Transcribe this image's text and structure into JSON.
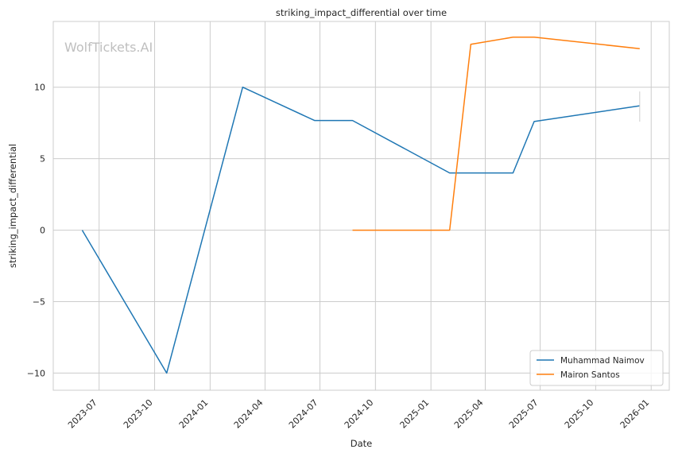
{
  "chart_data": {
    "type": "line",
    "title": "striking_impact_differential over time",
    "xlabel": "Date",
    "ylabel": "striking_impact_differential",
    "watermark": "WolfTickets.AI",
    "x_ticks": [
      "2023-07",
      "2023-10",
      "2024-01",
      "2024-04",
      "2024-07",
      "2024-10",
      "2025-01",
      "2025-04",
      "2025-07",
      "2025-10",
      "2026-01"
    ],
    "y_ticks": [
      -10,
      -5,
      0,
      5,
      10
    ],
    "xlim": [
      "2023-04-16",
      "2026-01-31"
    ],
    "ylim": [
      -11.2,
      14.6
    ],
    "grid": true,
    "legend_position": "lower-right",
    "series": [
      {
        "name": "Muhammad Naimov",
        "color": "#1f77b4",
        "points": [
          {
            "x": "2023-06-03",
            "y": 0
          },
          {
            "x": "2023-10-21",
            "y": -10
          },
          {
            "x": "2024-02-24",
            "y": 10
          },
          {
            "x": "2024-06-22",
            "y": 7.67
          },
          {
            "x": "2024-08-24",
            "y": 7.67
          },
          {
            "x": "2025-02-01",
            "y": 4
          },
          {
            "x": "2025-05-17",
            "y": 4
          },
          {
            "x": "2025-06-21",
            "y": 7.6
          },
          {
            "x": "2025-12-13",
            "y": 8.7
          }
        ]
      },
      {
        "name": "Mairon Santos",
        "color": "#ff7f0e",
        "points": [
          {
            "x": "2024-08-24",
            "y": 0
          },
          {
            "x": "2025-02-01",
            "y": 0
          },
          {
            "x": "2025-03-08",
            "y": 13
          },
          {
            "x": "2025-05-17",
            "y": 13.5
          },
          {
            "x": "2025-06-21",
            "y": 13.5
          },
          {
            "x": "2025-12-13",
            "y": 12.7
          }
        ]
      }
    ]
  }
}
